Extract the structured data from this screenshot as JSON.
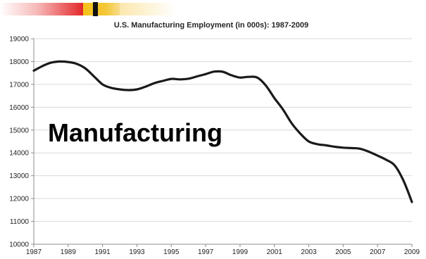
{
  "chart_data": {
    "type": "line",
    "title": "U.S. Manufacturing Employment (in 000s): 1987-2009",
    "xlabel": "",
    "ylabel": "",
    "annotation": "Manufacturing",
    "xlim": [
      1987,
      2009
    ],
    "ylim": [
      10000,
      19000
    ],
    "x_ticks": [
      1987,
      1989,
      1991,
      1993,
      1995,
      1997,
      1999,
      2001,
      2003,
      2005,
      2007,
      2009
    ],
    "y_ticks": [
      10000,
      11000,
      12000,
      13000,
      14000,
      15000,
      16000,
      17000,
      18000,
      19000
    ],
    "grid": "horizontal",
    "legend": "none",
    "line_color": "#1a1a1a",
    "series": [
      {
        "x": [
          1987,
          1987.5,
          1988,
          1988.5,
          1989,
          1989.5,
          1990,
          1990.5,
          1991,
          1991.5,
          1992,
          1992.5,
          1993,
          1993.5,
          1994,
          1994.5,
          1995,
          1995.5,
          1996,
          1996.5,
          1997,
          1997.5,
          1998,
          1998.5,
          1999,
          1999.5,
          2000,
          2000.5,
          2001,
          2001.5,
          2002,
          2002.5,
          2003,
          2003.5,
          2004,
          2004.5,
          2005,
          2005.5,
          2006,
          2006.5,
          2007,
          2007.5,
          2008,
          2008.5,
          2009
        ],
        "values": [
          17600,
          17800,
          17950,
          18000,
          17980,
          17900,
          17700,
          17350,
          17000,
          16850,
          16780,
          16750,
          16780,
          16900,
          17050,
          17150,
          17240,
          17220,
          17250,
          17350,
          17450,
          17560,
          17550,
          17400,
          17300,
          17330,
          17300,
          16950,
          16400,
          15900,
          15300,
          14850,
          14500,
          14380,
          14330,
          14270,
          14230,
          14210,
          14180,
          14050,
          13880,
          13700,
          13450,
          12800,
          11850
        ]
      }
    ]
  }
}
